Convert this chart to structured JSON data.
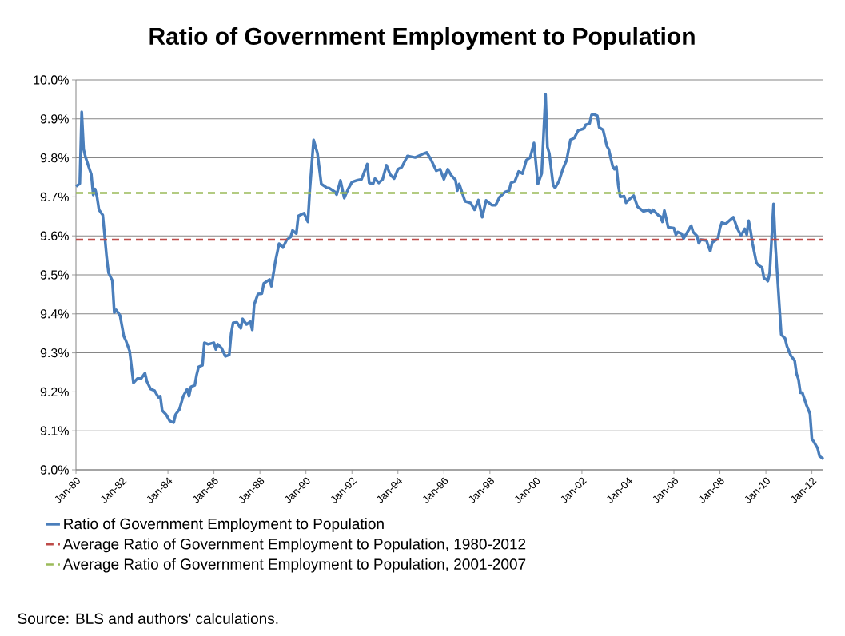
{
  "chart_data": {
    "type": "line",
    "title": "Ratio of Government Employment to Population",
    "x": [
      "1980-01",
      "1980-03",
      "1980-04",
      "1980-05",
      "1980-06",
      "1980-08",
      "1980-09",
      "1980-10",
      "1980-11",
      "1980-12",
      "1981-01",
      "1981-03",
      "1981-04",
      "1981-05",
      "1981-06",
      "1981-08",
      "1981-09",
      "1981-10",
      "1981-12",
      "1982-02",
      "1982-03",
      "1982-05",
      "1982-07",
      "1982-09",
      "1982-11",
      "1983-01",
      "1983-02",
      "1983-04",
      "1983-06",
      "1983-08",
      "1983-09",
      "1983-10",
      "1983-12",
      "1984-02",
      "1984-04",
      "1984-05",
      "1984-07",
      "1984-09",
      "1984-11",
      "1984-12",
      "1985-01",
      "1985-03",
      "1985-04",
      "1985-05",
      "1985-07",
      "1985-08",
      "1985-10",
      "1986-01",
      "1986-02",
      "1986-03",
      "1986-05",
      "1986-07",
      "1986-09",
      "1986-10",
      "1986-11",
      "1987-01",
      "1987-03",
      "1987-04",
      "1987-06",
      "1987-08",
      "1987-09",
      "1987-10",
      "1987-12",
      "1988-02",
      "1988-03",
      "1988-06",
      "1988-07",
      "1988-09",
      "1988-11",
      "1989-01",
      "1989-03",
      "1989-05",
      "1989-06",
      "1989-08",
      "1989-09",
      "1989-11",
      "1989-12",
      "1990-02",
      "1990-03",
      "1990-05",
      "1990-07",
      "1990-09",
      "1990-12",
      "1991-01",
      "1991-04",
      "1991-05",
      "1991-07",
      "1991-09",
      "1991-11",
      "1992-01",
      "1992-04",
      "1992-06",
      "1992-09",
      "1992-10",
      "1992-12",
      "1993-01",
      "1993-03",
      "1993-05",
      "1993-07",
      "1993-09",
      "1993-11",
      "1994-01",
      "1994-03",
      "1994-06",
      "1994-08",
      "1994-10",
      "1995-02",
      "1995-04",
      "1995-06",
      "1995-09",
      "1995-11",
      "1996-01",
      "1996-03",
      "1996-05",
      "1996-07",
      "1996-08",
      "1996-09",
      "1996-12",
      "1997-03",
      "1997-05",
      "1997-07",
      "1997-09",
      "1997-11",
      "1998-02",
      "1998-04",
      "1998-06",
      "1998-09",
      "1998-11",
      "1998-12",
      "1999-02",
      "1999-04",
      "1999-06",
      "1999-08",
      "1999-10",
      "1999-12",
      "2000-02",
      "2000-04",
      "2000-06",
      "2000-07",
      "2000-08",
      "2000-10",
      "2000-11",
      "2001-01",
      "2001-03",
      "2001-05",
      "2001-07",
      "2001-09",
      "2001-11",
      "2002-02",
      "2002-03",
      "2002-05",
      "2002-06",
      "2002-07",
      "2002-09",
      "2002-10",
      "2002-12",
      "2003-02",
      "2003-03",
      "2003-05",
      "2003-06",
      "2003-07",
      "2003-08",
      "2003-09",
      "2003-11",
      "2003-12",
      "2004-02",
      "2004-04",
      "2004-06",
      "2004-09",
      "2004-12",
      "2005-01",
      "2005-02",
      "2005-05",
      "2005-06",
      "2005-07",
      "2005-08",
      "2005-10",
      "2006-01",
      "2006-02",
      "2006-03",
      "2006-05",
      "2006-06",
      "2006-10",
      "2006-11",
      "2007-01",
      "2007-02",
      "2007-03",
      "2007-06",
      "2007-07",
      "2007-08",
      "2007-09",
      "2007-12",
      "2008-01",
      "2008-02",
      "2008-04",
      "2008-08",
      "2008-10",
      "2008-12",
      "2009-02",
      "2009-03",
      "2009-04",
      "2009-05",
      "2009-06",
      "2009-08",
      "2009-09",
      "2009-11",
      "2009-12",
      "2010-01",
      "2010-02",
      "2010-03",
      "2010-05",
      "2010-06",
      "2010-08",
      "2010-09",
      "2010-11",
      "2010-12",
      "2011-02",
      "2011-04",
      "2011-05",
      "2011-06",
      "2011-07",
      "2011-08",
      "2011-10",
      "2011-12",
      "2012-01",
      "2012-02",
      "2012-04",
      "2012-05",
      "2012-07"
    ],
    "series": [
      {
        "name": "Ratio of Government Employment to Population",
        "color": "#4a7ebb",
        "values": [
          9.727,
          9.734,
          9.918,
          9.822,
          9.802,
          9.772,
          9.758,
          9.705,
          9.72,
          9.7,
          9.667,
          9.653,
          9.6,
          9.546,
          9.505,
          9.485,
          9.403,
          9.41,
          9.396,
          9.342,
          9.332,
          9.305,
          9.223,
          9.234,
          9.234,
          9.248,
          9.227,
          9.207,
          9.203,
          9.186,
          9.189,
          9.152,
          9.142,
          9.125,
          9.121,
          9.142,
          9.155,
          9.189,
          9.207,
          9.189,
          9.213,
          9.217,
          9.244,
          9.264,
          9.268,
          9.326,
          9.322,
          9.326,
          9.309,
          9.322,
          9.312,
          9.291,
          9.295,
          9.35,
          9.377,
          9.378,
          9.363,
          9.387,
          9.373,
          9.38,
          9.359,
          9.424,
          9.451,
          9.452,
          9.478,
          9.488,
          9.471,
          9.533,
          9.58,
          9.57,
          9.59,
          9.597,
          9.614,
          9.606,
          9.651,
          9.656,
          9.658,
          9.636,
          9.717,
          9.846,
          9.812,
          9.733,
          9.723,
          9.723,
          9.713,
          9.706,
          9.742,
          9.697,
          9.72,
          9.738,
          9.743,
          9.745,
          9.784,
          9.736,
          9.733,
          9.747,
          9.736,
          9.745,
          9.781,
          9.757,
          9.747,
          9.771,
          9.776,
          9.805,
          9.803,
          9.801,
          9.81,
          9.814,
          9.798,
          9.767,
          9.771,
          9.745,
          9.771,
          9.754,
          9.744,
          9.716,
          9.733,
          9.689,
          9.684,
          9.667,
          9.692,
          9.648,
          9.691,
          9.679,
          9.679,
          9.699,
          9.713,
          9.716,
          9.736,
          9.74,
          9.765,
          9.76,
          9.794,
          9.801,
          9.838,
          9.733,
          9.76,
          9.963,
          9.828,
          9.811,
          9.73,
          9.723,
          9.74,
          9.771,
          9.794,
          9.846,
          9.851,
          9.87,
          9.875,
          9.885,
          9.888,
          9.91,
          9.912,
          9.908,
          9.878,
          9.872,
          9.83,
          9.822,
          9.779,
          9.771,
          9.777,
          9.728,
          9.7,
          9.702,
          9.685,
          9.695,
          9.703,
          9.675,
          9.663,
          9.667,
          9.659,
          9.667,
          9.652,
          9.65,
          9.636,
          9.665,
          9.622,
          9.62,
          9.603,
          9.61,
          9.606,
          9.593,
          9.626,
          9.61,
          9.6,
          9.581,
          9.59,
          9.588,
          9.573,
          9.561,
          9.583,
          9.593,
          9.62,
          9.634,
          9.631,
          9.648,
          9.62,
          9.601,
          9.618,
          9.603,
          9.639,
          9.613,
          9.581,
          9.532,
          9.525,
          9.519,
          9.491,
          9.489,
          9.484,
          9.505,
          9.682,
          9.573,
          9.422,
          9.347,
          9.337,
          9.317,
          9.293,
          9.28,
          9.246,
          9.232,
          9.198,
          9.198,
          9.168,
          9.144,
          9.079,
          9.072,
          9.055,
          9.035,
          9.028
        ]
      }
    ],
    "xlim": [
      "1980-01",
      "2012-07"
    ],
    "xticks": [
      {
        "value": "1980-01",
        "label": "Jan-80"
      },
      {
        "value": "1982-01",
        "label": "Jan-82"
      },
      {
        "value": "1984-01",
        "label": "Jan-84"
      },
      {
        "value": "1986-01",
        "label": "Jan-86"
      },
      {
        "value": "1988-01",
        "label": "Jan-88"
      },
      {
        "value": "1990-01",
        "label": "Jan-90"
      },
      {
        "value": "1992-01",
        "label": "Jan-92"
      },
      {
        "value": "1994-01",
        "label": "Jan-94"
      },
      {
        "value": "1996-01",
        "label": "Jan-96"
      },
      {
        "value": "1998-01",
        "label": "Jan-98"
      },
      {
        "value": "2000-01",
        "label": "Jan-00"
      },
      {
        "value": "2002-01",
        "label": "Jan-02"
      },
      {
        "value": "2004-01",
        "label": "Jan-04"
      },
      {
        "value": "2006-01",
        "label": "Jan-06"
      },
      {
        "value": "2008-01",
        "label": "Jan-08"
      },
      {
        "value": "2010-01",
        "label": "Jan-10"
      },
      {
        "value": "2012-01",
        "label": "Jan-12"
      }
    ],
    "ylim": [
      9.0,
      10.0
    ],
    "yticks": [
      {
        "value": 9.0,
        "label": "9.0%"
      },
      {
        "value": 9.1,
        "label": "9.1%"
      },
      {
        "value": 9.2,
        "label": "9.2%"
      },
      {
        "value": 9.3,
        "label": "9.3%"
      },
      {
        "value": 9.4,
        "label": "9.4%"
      },
      {
        "value": 9.5,
        "label": "9.5%"
      },
      {
        "value": 9.6,
        "label": "9.6%"
      },
      {
        "value": 9.7,
        "label": "9.7%"
      },
      {
        "value": 9.8,
        "label": "9.8%"
      },
      {
        "value": 9.9,
        "label": "9.9%"
      },
      {
        "value": 10.0,
        "label": "10.0%"
      }
    ],
    "ref_lines": [
      {
        "axis": "y",
        "value": 9.59,
        "label": "Average Ratio of Government Employment to Population, 1980-2012",
        "color": "#be4b48",
        "line_style": "dashed"
      },
      {
        "axis": "y",
        "value": 9.71,
        "label": "Average Ratio of Government Employment to Population, 2001-2007",
        "color": "#9bbb59",
        "line_style": "dashed"
      }
    ],
    "grid": "y",
    "legend": "bottom",
    "marker": "none",
    "line_style": "solid",
    "annotations": [
      "Source: BLS and authors' calculations."
    ]
  }
}
